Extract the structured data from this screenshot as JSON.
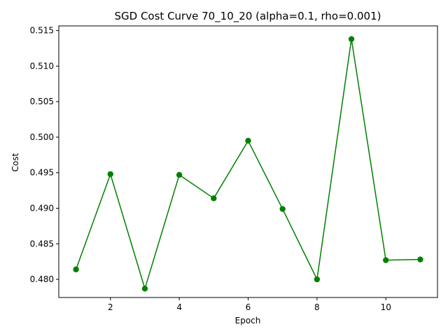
{
  "chart_data": {
    "type": "line",
    "title": "SGD Cost Curve 70_10_20 (alpha=0.1, rho=0.001)",
    "xlabel": "Epoch",
    "ylabel": "Cost",
    "x": [
      1,
      2,
      3,
      4,
      5,
      6,
      7,
      8,
      9,
      10,
      11
    ],
    "series": [
      {
        "values": [
          0.4814,
          0.4948,
          0.4787,
          0.4947,
          0.4914,
          0.4995,
          0.4899,
          0.48,
          0.5138,
          0.4827,
          0.4828
        ],
        "color": "#008000",
        "marker": "circle"
      }
    ],
    "xlim": [
      0.5,
      11.5
    ],
    "ylim": [
      0.47745,
      0.51565
    ],
    "xticks": [
      2,
      4,
      6,
      8,
      10
    ],
    "xtick_labels": [
      "2",
      "4",
      "6",
      "8",
      "10"
    ],
    "yticks": [
      0.48,
      0.485,
      0.49,
      0.495,
      0.5,
      0.505,
      0.51,
      0.515
    ],
    "ytick_labels": [
      "0.480",
      "0.485",
      "0.490",
      "0.495",
      "0.500",
      "0.505",
      "0.510",
      "0.515"
    ],
    "grid": false,
    "legend": false
  }
}
